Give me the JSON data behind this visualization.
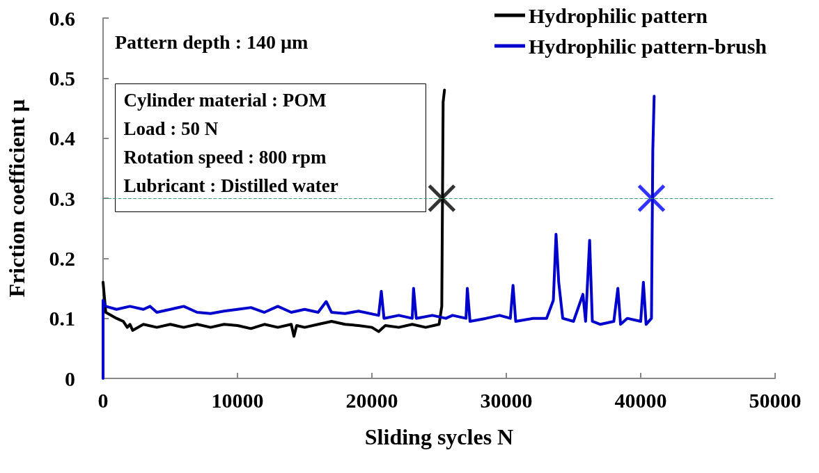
{
  "chart_data": {
    "type": "line",
    "xlabel": "Sliding sycles N",
    "ylabel": "Friction coefficient µ",
    "xlim": [
      0,
      50000
    ],
    "xticks": [
      0,
      10000,
      20000,
      30000,
      40000,
      50000
    ],
    "ylim": [
      0,
      0.6
    ],
    "yticks": [
      0,
      0.1,
      0.2,
      0.3,
      0.4,
      0.5,
      0.6
    ],
    "grid": false,
    "legend": "top right",
    "marker": "none",
    "line_style": "solid",
    "annotations": [
      "Pattern depth : 140 µm",
      "Cylinder material : POM",
      "Load : 50 N",
      "Rotation speed : 800 rpm",
      "Lubricant : Distilled water"
    ],
    "ref_lines": [
      {
        "axis": "y",
        "value": 0.3,
        "color": "#3a9a6a",
        "line_style": "dashed"
      }
    ],
    "series": [
      {
        "name": "Hydrophilic pattern",
        "color": "#000000",
        "x": [
          0,
          200,
          1000,
          1500,
          1800,
          2000,
          2200,
          3000,
          4000,
          5000,
          6000,
          7000,
          8000,
          9000,
          10000,
          11000,
          12000,
          13000,
          14000,
          14200,
          14400,
          15000,
          16000,
          17000,
          18000,
          19000,
          20000,
          20500,
          21000,
          22000,
          23000,
          24000,
          25000,
          25200,
          25300,
          25400
        ],
        "values": [
          0.16,
          0.11,
          0.1,
          0.095,
          0.085,
          0.09,
          0.08,
          0.09,
          0.085,
          0.09,
          0.085,
          0.09,
          0.085,
          0.09,
          0.088,
          0.083,
          0.09,
          0.085,
          0.09,
          0.07,
          0.088,
          0.085,
          0.09,
          0.095,
          0.09,
          0.088,
          0.085,
          0.078,
          0.088,
          0.085,
          0.09,
          0.085,
          0.09,
          0.12,
          0.46,
          0.48
        ]
      },
      {
        "name": "Hydrophilic pattern-brush",
        "color": "#0000cc",
        "x": [
          0,
          0,
          200,
          1000,
          2000,
          3000,
          3500,
          4000,
          5000,
          6000,
          7000,
          8000,
          9000,
          10000,
          11000,
          12000,
          13000,
          14000,
          15000,
          16000,
          16600,
          17000,
          18000,
          19000,
          20500,
          20700,
          20900,
          22000,
          23000,
          23100,
          23300,
          24500,
          25500,
          26000,
          27000,
          27100,
          27300,
          28500,
          29500,
          30300,
          30500,
          30700,
          32000,
          33000,
          33500,
          33700,
          33900,
          34200,
          35000,
          35700,
          35900,
          36200,
          36400,
          37000,
          38000,
          38300,
          38500,
          39000,
          40000,
          40200,
          40400,
          40800,
          40900,
          41000
        ],
        "values": [
          0,
          0.13,
          0.12,
          0.115,
          0.12,
          0.115,
          0.12,
          0.11,
          0.115,
          0.12,
          0.11,
          0.108,
          0.112,
          0.115,
          0.118,
          0.11,
          0.12,
          0.11,
          0.115,
          0.11,
          0.128,
          0.11,
          0.108,
          0.112,
          0.105,
          0.145,
          0.1,
          0.105,
          0.1,
          0.15,
          0.1,
          0.105,
          0.1,
          0.105,
          0.1,
          0.15,
          0.095,
          0.1,
          0.105,
          0.1,
          0.155,
          0.095,
          0.1,
          0.1,
          0.13,
          0.24,
          0.16,
          0.1,
          0.095,
          0.14,
          0.095,
          0.23,
          0.095,
          0.09,
          0.095,
          0.15,
          0.09,
          0.1,
          0.095,
          0.16,
          0.09,
          0.1,
          0.38,
          0.47
        ]
      },
      {
        "type": "scatter",
        "color": "#000000",
        "marker": "cross",
        "x": [
          25200
        ],
        "values": [
          0.3
        ]
      },
      {
        "type": "scatter",
        "color": "#0000ff",
        "marker": "cross",
        "x": [
          40800
        ],
        "values": [
          0.3
        ]
      }
    ]
  }
}
